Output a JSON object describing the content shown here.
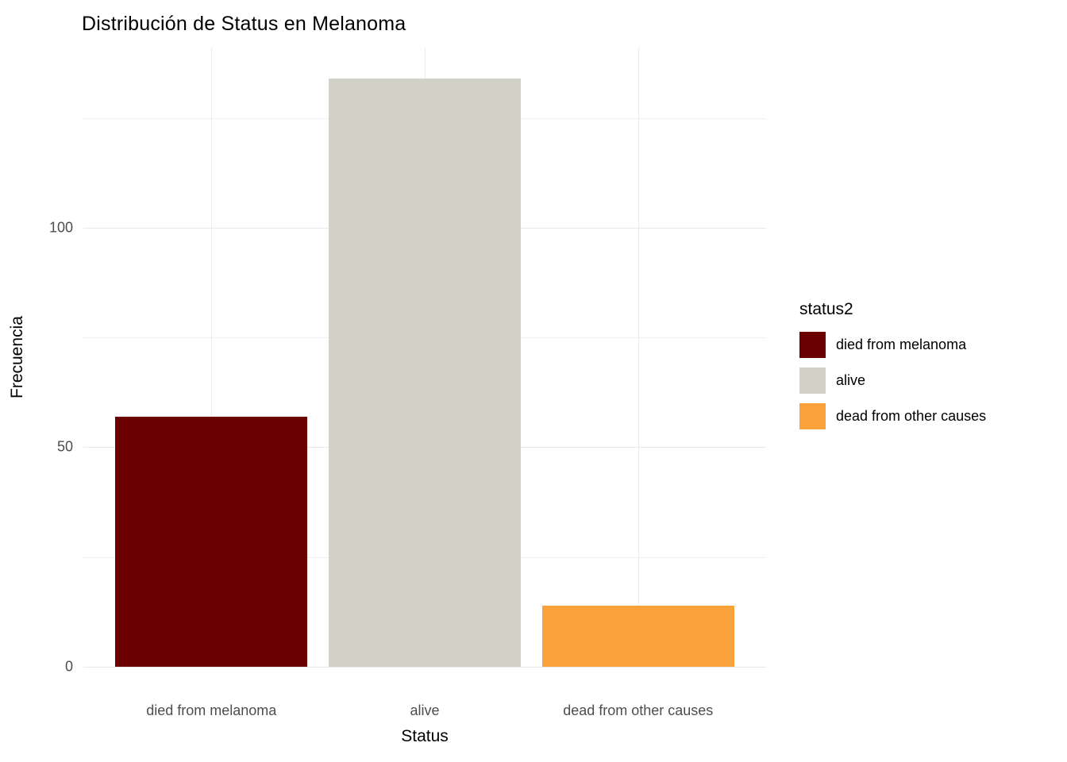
{
  "chart_data": {
    "type": "bar",
    "title": "Distribución de Status en Melanoma",
    "xlabel": "Status",
    "ylabel": "Frecuencia",
    "categories": [
      "died from melanoma",
      "alive",
      "dead from other causes"
    ],
    "values": [
      57,
      134,
      14
    ],
    "colors": [
      "#6B0000",
      "#D2D1C6",
      "#F9A23C"
    ],
    "ylim": [
      0,
      141
    ],
    "yticks": [
      0,
      50,
      100
    ],
    "yticks_minor": [
      25,
      75,
      125
    ],
    "grid": true,
    "background": "#ffffff",
    "legend": {
      "title": "status2",
      "position": "right",
      "entries": [
        {
          "label": "died from melanoma",
          "color": "#6B0000"
        },
        {
          "label": "alive",
          "color": "#D2D1C6"
        },
        {
          "label": "dead from other causes",
          "color": "#F9A23C"
        }
      ]
    }
  }
}
